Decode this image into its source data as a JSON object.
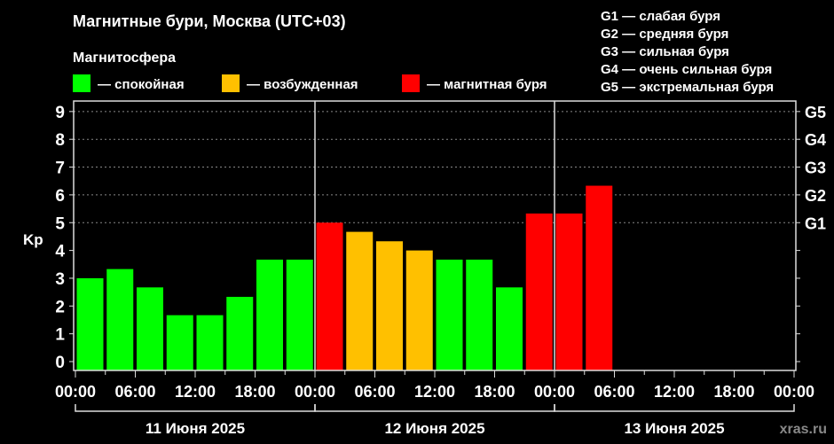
{
  "chart_data": {
    "type": "bar",
    "title": "Магнитные бури, Москва (UTC+03)",
    "legend_title": "Магнитосфера",
    "legend": [
      {
        "label": "— спокойная",
        "color": "#00ff00"
      },
      {
        "label": "— возбужденная",
        "color": "#ffc000"
      },
      {
        "label": "— магнитная буря",
        "color": "#ff0000"
      }
    ],
    "g_legend": [
      "G1 — слабая буря",
      "G2 — средняя буря",
      "G3 — сильная буря",
      "G4 — очень сильная буря",
      "G5 — экстремальная буря"
    ],
    "ylabel": "Kp",
    "ylim": [
      0,
      9
    ],
    "yticks": [
      "0",
      "1",
      "2",
      "3",
      "4",
      "5",
      "6",
      "7",
      "8",
      "9"
    ],
    "right_ticks": [
      {
        "kp": 5,
        "label": "G1"
      },
      {
        "kp": 6,
        "label": "G2"
      },
      {
        "kp": 7,
        "label": "G3"
      },
      {
        "kp": 8,
        "label": "G4"
      },
      {
        "kp": 9,
        "label": "G5"
      }
    ],
    "grid": "dashed horizontal at Kp 5–9",
    "xtick_labels": [
      "00:00",
      "06:00",
      "12:00",
      "18:00",
      "00:00",
      "06:00",
      "12:00",
      "18:00",
      "00:00",
      "06:00",
      "12:00",
      "18:00",
      "00:00"
    ],
    "days": [
      "11 Июня 2025",
      "12 Июня 2025",
      "13 Июня 2025"
    ],
    "interval_hours": 3,
    "values": [
      3.0,
      3.33,
      2.67,
      1.67,
      1.67,
      2.33,
      3.67,
      3.67,
      5.0,
      4.67,
      4.33,
      4.0,
      3.67,
      3.67,
      2.67,
      5.33,
      5.33,
      6.33
    ],
    "colors": [
      "#00ff00",
      "#00ff00",
      "#00ff00",
      "#00ff00",
      "#00ff00",
      "#00ff00",
      "#00ff00",
      "#00ff00",
      "#ff0000",
      "#ffc000",
      "#ffc000",
      "#ffc000",
      "#00ff00",
      "#00ff00",
      "#00ff00",
      "#ff0000",
      "#ff0000",
      "#ff0000"
    ]
  },
  "watermark": "xras.ru"
}
